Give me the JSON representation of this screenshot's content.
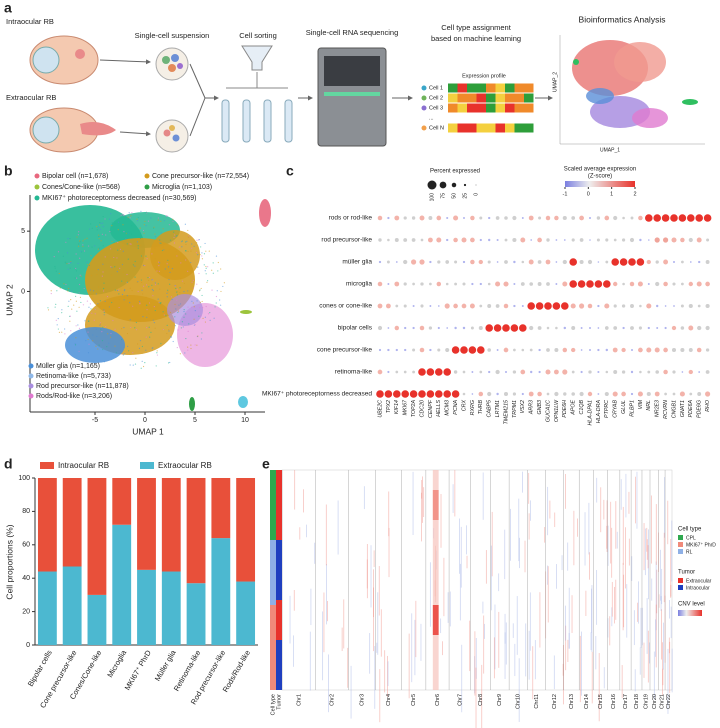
{
  "panel_letters": [
    "a",
    "b",
    "c",
    "d",
    "e"
  ],
  "panel_a": {
    "intraocular": "Intraocular RB",
    "extraocular": "Extraocular RB",
    "suspension": "Single-cell suspension",
    "sorting": "Cell sorting",
    "sequencing": "Single-cell RNA sequencing",
    "assignment": [
      "Cell type assignment",
      "based on machine learning"
    ],
    "profile": "Expression profile",
    "cells": [
      "Cell 1",
      "Cell 2",
      "Cell 3",
      "...",
      "Cell N"
    ],
    "analysis": "Bioinformatics Analysis",
    "umap_x": "UMAP_1",
    "umap_y": "UMAP_2"
  },
  "panel_b": {
    "legend_top": [
      "Bipolar cell (n=1,678)",
      "Cone precursor-like (n=72,554)",
      "Cones/Cone-like (n=568)",
      "Microglia (n=1,103)",
      "MKI67⁺ photoreceptorness decreased (n=30,569)"
    ],
    "colors_top": [
      "#e8687e",
      "#d39b1d",
      "#9cc43c",
      "#2f9e46",
      "#24b893"
    ],
    "legend_bottom": [
      "Müller glia (n=1,165)",
      "Retinoma-like (n=5,733)",
      "Rod precursor-like (n=11,878)",
      "Rods/Rod-like (n=3,206)"
    ],
    "colors_bottom": [
      "#4a8fd8",
      "#8fb8e8",
      "#a98ee0",
      "#e07ad0"
    ],
    "xlabel": "UMAP 1",
    "ylabel": "UMAP 2",
    "xlim": [
      -11.5,
      12
    ],
    "ylim": [
      -10,
      8
    ],
    "xticks": [
      -5,
      0,
      5,
      10
    ],
    "yticks": [
      0,
      5
    ]
  },
  "panel_c": {
    "size_title": "Percent expressed",
    "size_ticks": [
      100,
      75,
      50,
      25,
      0
    ],
    "color_title": "Scaled average expression",
    "color_subtitle": "(Z-score)",
    "color_ticks": [
      -1,
      0,
      1,
      2
    ],
    "rows": [
      "rods or rod-like",
      "rod precursor-like",
      "müller glia",
      "microglia",
      "cones or cone-like",
      "bipolar cells",
      "cone precursor-like",
      "retinoma-like",
      "MKI67⁺ photoreceptorness decreased"
    ],
    "genes": [
      "UBE2C",
      "TPX2",
      "KIF14",
      "MKI67",
      "TOP2A",
      "CDC20",
      "CENPF",
      "HELLS",
      "MCM3",
      "PCNA",
      "CRX",
      "RXRG",
      "THRB",
      "CABP5",
      "LRTM1",
      "TMEM215",
      "TRPM1",
      "VSX2",
      "ARR3",
      "GNB3",
      "GUCA1C",
      "OPN1LW",
      "PDE6H",
      "APOE",
      "C1QB",
      "HLA-DPA1",
      "HLA-DRA",
      "PTPRC",
      "CRYAB",
      "GLUL",
      "RLBP1",
      "VIM",
      "NRL",
      "NR2E3",
      "RCVRN",
      "CNGB1",
      "GNAT1",
      "PDE6A",
      "PDE6G",
      "RHO"
    ],
    "high": [
      [
        32,
        33,
        34,
        35,
        36,
        37,
        38,
        39
      ],
      [
        33,
        34
      ],
      [
        23,
        28,
        29,
        30,
        31
      ],
      [
        23,
        24,
        25,
        26,
        27
      ],
      [
        18,
        19,
        20,
        21,
        22
      ],
      [
        13,
        14,
        15,
        16,
        17
      ],
      [
        9,
        10,
        11,
        12
      ],
      [
        5,
        6,
        7,
        8
      ],
      [
        0,
        1,
        2,
        3,
        4,
        5,
        6,
        7,
        8,
        9
      ]
    ]
  },
  "chart_data": {
    "type": "bar",
    "stacked": true,
    "categories": [
      "Bipolar cells",
      "Cone precursor-like",
      "Cones/Cone-like",
      "Microglia",
      "MKI67⁺ PhrD",
      "Müller glia",
      "Retinoma-like",
      "Rod precursor-like",
      "Rods/Rod-like"
    ],
    "series": [
      {
        "name": "Intraocular RB",
        "color": "#e8503a",
        "values": [
          56,
          53,
          70,
          28,
          55,
          56,
          63,
          36,
          62
        ]
      },
      {
        "name": "Extraocular RB",
        "color": "#4cb8d0",
        "values": [
          44,
          47,
          30,
          72,
          45,
          44,
          37,
          64,
          38
        ]
      }
    ],
    "ylabel": "Cell proportions (%)",
    "ylim": [
      0,
      100
    ],
    "yticks": [
      0,
      20,
      40,
      60,
      80,
      100
    ]
  },
  "panel_e": {
    "chromosomes": [
      "Chr1",
      "Chr2",
      "Chr3",
      "Chr4",
      "Chr5",
      "Chr6",
      "Chr7",
      "Chr8",
      "Chr9",
      "Chr10",
      "Chr11",
      "Chr12",
      "Chr13",
      "Chr14",
      "Chr15",
      "Chr16",
      "Chr17",
      "Chr18",
      "Chr19",
      "Chr20",
      "Chr21",
      "Chr22"
    ],
    "track_labels": [
      "Cell type",
      "Tumor"
    ],
    "cell_type_title": "Cell type",
    "cell_types": [
      "CPL",
      "MKI67⁺ PhrD",
      "RL"
    ],
    "cell_type_colors": [
      "#2fa84f",
      "#f08a7a",
      "#8fb0e6"
    ],
    "tumor_title": "Tumor",
    "tumors": [
      "Extraocular",
      "Intraocular"
    ],
    "tumor_colors": [
      "#e8322b",
      "#1f3fbf"
    ],
    "cnv_title": "CNV level"
  }
}
